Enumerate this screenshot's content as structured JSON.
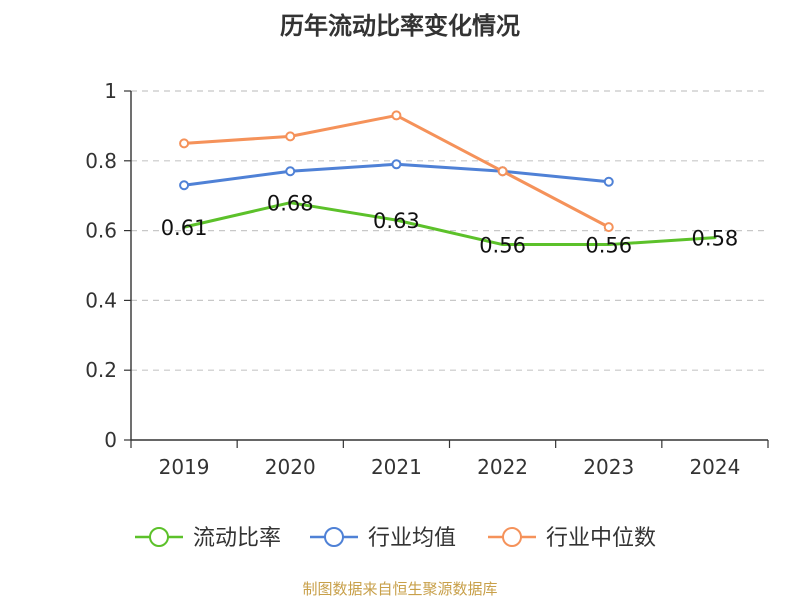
{
  "chart_data": {
    "type": "line",
    "title": "历年流动比率变化情况",
    "categories": [
      "2019",
      "2020",
      "2021",
      "2022",
      "2023",
      "2024"
    ],
    "ylim": [
      0,
      1
    ],
    "yticks": [
      "0",
      "0.2",
      "0.4",
      "0.6",
      "0.8",
      "1"
    ],
    "grid": true,
    "legend_position": "bottom",
    "series": [
      {
        "name": "流动比率",
        "color": "#5cc12a",
        "values": [
          0.61,
          0.68,
          0.63,
          0.56,
          0.56,
          0.58
        ],
        "labels": [
          "0.61",
          "0.68",
          "0.63",
          "0.56",
          "0.56",
          "0.58"
        ],
        "show_markers": false
      },
      {
        "name": "行业均值",
        "color": "#4f81d6",
        "values": [
          0.73,
          0.77,
          0.79,
          0.77,
          0.74,
          null
        ],
        "labels": null,
        "show_markers": true
      },
      {
        "name": "行业中位数",
        "color": "#f5925a",
        "values": [
          0.85,
          0.87,
          0.93,
          0.77,
          0.61,
          null
        ],
        "labels": null,
        "show_markers": true
      }
    ]
  },
  "footer": {
    "source": "制图数据来自恒生聚源数据库"
  }
}
